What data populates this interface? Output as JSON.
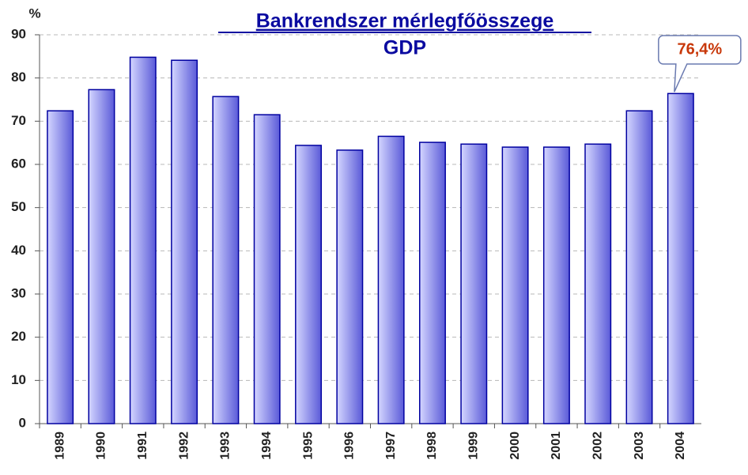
{
  "chart_data": {
    "type": "bar",
    "title": "Bankrendszer mérlegfőösszege",
    "subtitle": "GDP",
    "y_label": "%",
    "categories": [
      "1989",
      "1990",
      "1991",
      "1992",
      "1993",
      "1994",
      "1995",
      "1996",
      "1997",
      "1998",
      "1999",
      "2000",
      "2001",
      "2002",
      "2003",
      "2004"
    ],
    "values": [
      72.4,
      77.3,
      84.8,
      84.1,
      75.7,
      71.5,
      64.4,
      63.3,
      66.5,
      65.1,
      64.7,
      64.0,
      64.0,
      64.7,
      72.4,
      76.4
    ],
    "value_labels": [
      null,
      null,
      null,
      null,
      null,
      null,
      null,
      null,
      null,
      null,
      null,
      null,
      null,
      null,
      null,
      "76,4%"
    ],
    "color": "#5a5ad8",
    "ylim": [
      0,
      90
    ],
    "yticks": [
      0,
      10,
      20,
      30,
      40,
      50,
      60,
      70,
      80,
      90
    ],
    "grid": true
  }
}
